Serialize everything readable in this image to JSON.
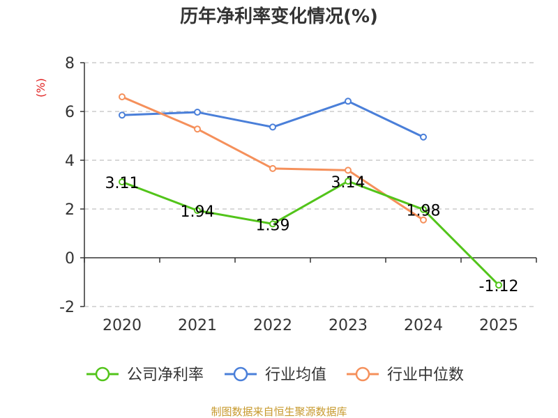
{
  "chart_data": {
    "type": "line",
    "title": "历年净利率变化情况(%)",
    "ylabel": "(%)",
    "xlabel": "",
    "categories": [
      "2020",
      "2021",
      "2022",
      "2023",
      "2024",
      "2025"
    ],
    "ylim": [
      -2,
      8
    ],
    "yticks": [
      -2,
      0,
      2,
      4,
      6,
      8
    ],
    "grid": true,
    "legend_position": "bottom",
    "series": [
      {
        "name": "公司净利率",
        "color": "#52c41a",
        "values": [
          3.11,
          1.94,
          1.39,
          3.14,
          1.98,
          -1.12
        ],
        "labels": [
          "3.11",
          "1.94",
          "1.39",
          "3.14",
          "1.98",
          "-1.12"
        ]
      },
      {
        "name": "行业均值",
        "color": "#4a7fd9",
        "values": [
          5.85,
          5.97,
          5.36,
          6.42,
          4.95,
          null
        ]
      },
      {
        "name": "行业中位数",
        "color": "#f5905b",
        "values": [
          6.6,
          5.28,
          3.66,
          3.59,
          1.55,
          null
        ]
      }
    ],
    "source": "制图数据来自恒生聚源数据库"
  }
}
